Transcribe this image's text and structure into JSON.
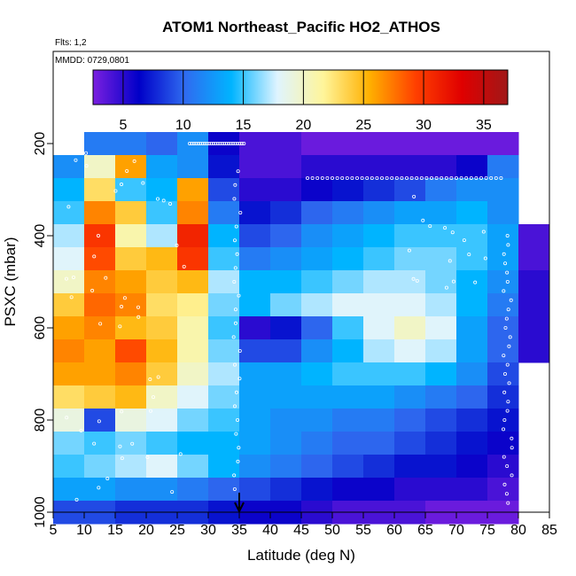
{
  "chart_data": {
    "type": "heatmap",
    "title": "ATOM1 Northeast_Pacific HO2_ATHOS",
    "flights_label": "Flts: 1,2",
    "dates_label": "MMDD: 0729,0801",
    "xlabel": "Latitude (deg N)",
    "ylabel": "PSXC (mbar)",
    "xlim": [
      5,
      85
    ],
    "ylim": [
      1000,
      0
    ],
    "x_ticks": [
      "5",
      "10",
      "15",
      "20",
      "25",
      "30",
      "35",
      "40",
      "45",
      "50",
      "55",
      "60",
      "65",
      "70",
      "75",
      "80",
      "85"
    ],
    "y_ticks": [
      "200",
      "400",
      "600",
      "800",
      "1000"
    ],
    "colorbar": {
      "min": 2.5,
      "max": 37,
      "ticks": [
        "5",
        "10",
        "15",
        "20",
        "25",
        "30",
        "35"
      ],
      "colors": [
        "#7a1fe0",
        "#0000c8",
        "#2f6bf0",
        "#00b4ff",
        "#dff4ff",
        "#fff59a",
        "#ffb000",
        "#ff4000",
        "#e00000",
        "#a01818"
      ]
    },
    "marker_latitude": 35,
    "pressure_levels": [
      200,
      250,
      300,
      350,
      400,
      450,
      500,
      550,
      600,
      650,
      700,
      750,
      800,
      850,
      900,
      950,
      1000
    ],
    "latitude_bins": [
      5,
      10,
      15,
      20,
      25,
      30,
      35,
      40,
      45,
      50,
      55,
      60,
      65,
      70,
      75,
      80
    ],
    "values": [
      [
        null,
        11,
        11,
        10,
        12,
        6,
        4,
        4,
        3,
        3,
        3,
        3,
        3,
        3,
        3,
        null
      ],
      [
        12,
        20,
        26,
        13,
        12,
        7,
        4,
        4,
        5,
        5,
        5,
        5,
        5,
        6,
        11,
        null
      ],
      [
        14,
        23,
        15,
        14,
        26,
        9,
        5,
        5,
        6,
        7,
        8,
        9,
        11,
        12,
        12,
        null
      ],
      [
        15,
        27,
        24,
        15,
        27,
        11,
        7,
        8,
        10,
        11,
        12,
        13,
        13,
        14,
        12,
        null
      ],
      [
        17,
        30,
        21,
        17,
        31,
        14,
        9,
        10,
        12,
        13,
        14,
        15,
        15,
        15,
        13,
        4
      ],
      [
        18,
        29,
        24,
        25,
        30,
        15,
        11,
        12,
        13,
        14,
        15,
        16,
        16,
        15,
        13,
        4
      ],
      [
        20,
        27,
        26,
        24,
        25,
        17,
        14,
        14,
        15,
        16,
        17,
        17,
        16,
        14,
        12,
        5
      ],
      [
        24,
        28,
        27,
        23,
        22,
        16,
        14,
        16,
        17,
        18,
        18,
        18,
        17,
        14,
        11,
        5
      ],
      [
        26,
        27,
        25,
        24,
        21,
        15,
        5,
        7,
        10,
        15,
        18,
        20,
        18,
        13,
        10,
        5
      ],
      [
        27,
        26,
        29,
        25,
        21,
        16,
        9,
        9,
        12,
        14,
        17,
        18,
        17,
        13,
        10,
        5
      ],
      [
        26,
        26,
        27,
        24,
        20,
        17,
        13,
        13,
        14,
        15,
        15,
        15,
        14,
        12,
        9,
        null
      ],
      [
        23,
        24,
        25,
        20,
        18,
        16,
        13,
        13,
        13,
        13,
        13,
        12,
        11,
        10,
        8,
        null
      ],
      [
        19,
        9,
        19,
        18,
        16,
        15,
        13,
        12,
        12,
        11,
        11,
        10,
        9,
        8,
        7,
        null
      ],
      [
        16,
        15,
        16,
        15,
        14,
        14,
        13,
        12,
        11,
        10,
        10,
        9,
        8,
        7,
        6,
        null
      ],
      [
        15,
        16,
        17,
        18,
        16,
        14,
        12,
        11,
        10,
        9,
        8,
        7,
        7,
        6,
        5,
        null
      ],
      [
        13,
        13,
        12,
        12,
        11,
        10,
        9,
        8,
        7,
        6,
        6,
        5,
        5,
        5,
        4,
        null
      ],
      [
        9,
        9,
        8,
        8,
        8,
        7,
        6,
        6,
        5,
        4,
        4,
        4,
        3,
        3,
        3,
        null
      ]
    ]
  }
}
